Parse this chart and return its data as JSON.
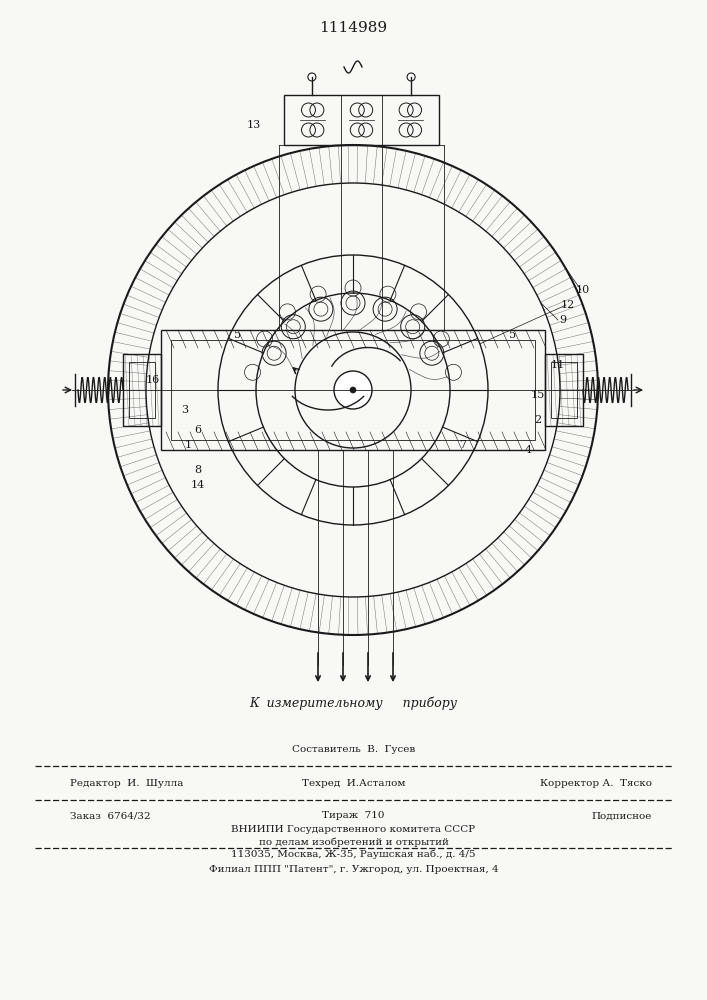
{
  "title_number": "1114989",
  "bg_color": "#f8f8f5",
  "line_color": "#1a1a1a",
  "footer_texts": {
    "sostavitel": "Составитель  В.  Гусев",
    "redaktor": "Редактор  И.  Шулла",
    "tekhred": "Техред  И.Асталом",
    "korrektor": "Корректор А.  Тяско",
    "zakaz": "Заказ  6764/32",
    "tirazh": "Тираж  710",
    "podpisnoe": "Подписное",
    "vniipii_line1": "ВНИИПИ Государственного комитета СССР",
    "vniipii_line2": "по делам изобретений и открытий",
    "vniipii_line3": "113035, Москва, Ж-35, Раушская наб., д. 4/5",
    "filial": "Филиал ППП \"Патент\", г. Ужгород, ул. Проектная, 4"
  },
  "k_izmer_text": "К  измерительному     прибору"
}
